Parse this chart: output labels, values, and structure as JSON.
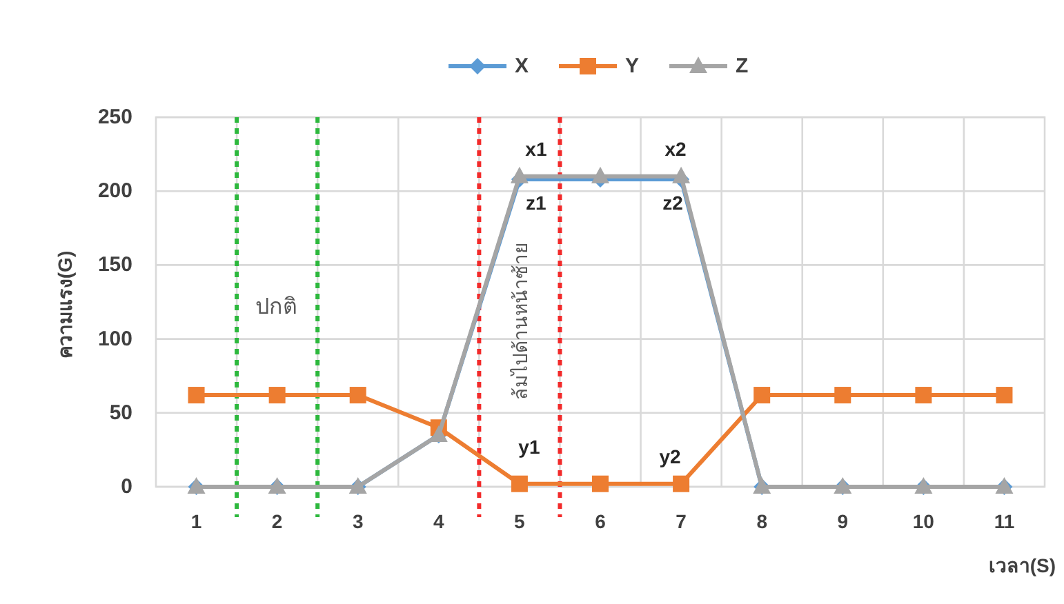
{
  "chart_data": {
    "type": "line",
    "xlabel": "เวลา(S)",
    "ylabel": "ความแรง(G)",
    "categories": [
      "1",
      "2",
      "3",
      "4",
      "5",
      "6",
      "7",
      "8",
      "9",
      "10",
      "11"
    ],
    "ylim": [
      0,
      250
    ],
    "yticks": [
      0,
      50,
      100,
      150,
      200,
      250
    ],
    "grid": true,
    "legend": "top",
    "series": [
      {
        "name": "X",
        "color": "#5b9bd5",
        "marker": "diamond",
        "values": [
          0,
          0,
          0,
          35,
          208,
          208,
          208,
          0,
          0,
          0,
          0
        ]
      },
      {
        "name": "Y",
        "color": "#ed7d31",
        "marker": "square",
        "values": [
          62,
          62,
          62,
          40,
          2,
          2,
          2,
          62,
          62,
          62,
          62
        ]
      },
      {
        "name": "Z",
        "color": "#a5a5a5",
        "marker": "triangle",
        "values": [
          0,
          0,
          0,
          35,
          210,
          210,
          210,
          0,
          0,
          0,
          0
        ]
      }
    ],
    "annotations": [
      "ปกติ",
      "ล้มไปด้านหน้าซ้าย",
      {
        "text": "x1",
        "x": "5",
        "y": 208
      },
      {
        "text": "z1",
        "x": "5",
        "y": 210
      },
      {
        "text": "x2",
        "x": "7",
        "y": 208
      },
      {
        "text": "z2",
        "x": "7",
        "y": 210
      },
      {
        "text": "y1",
        "x": "5",
        "y": 2
      },
      {
        "text": "y2",
        "x": "7",
        "y": 2
      }
    ]
  }
}
